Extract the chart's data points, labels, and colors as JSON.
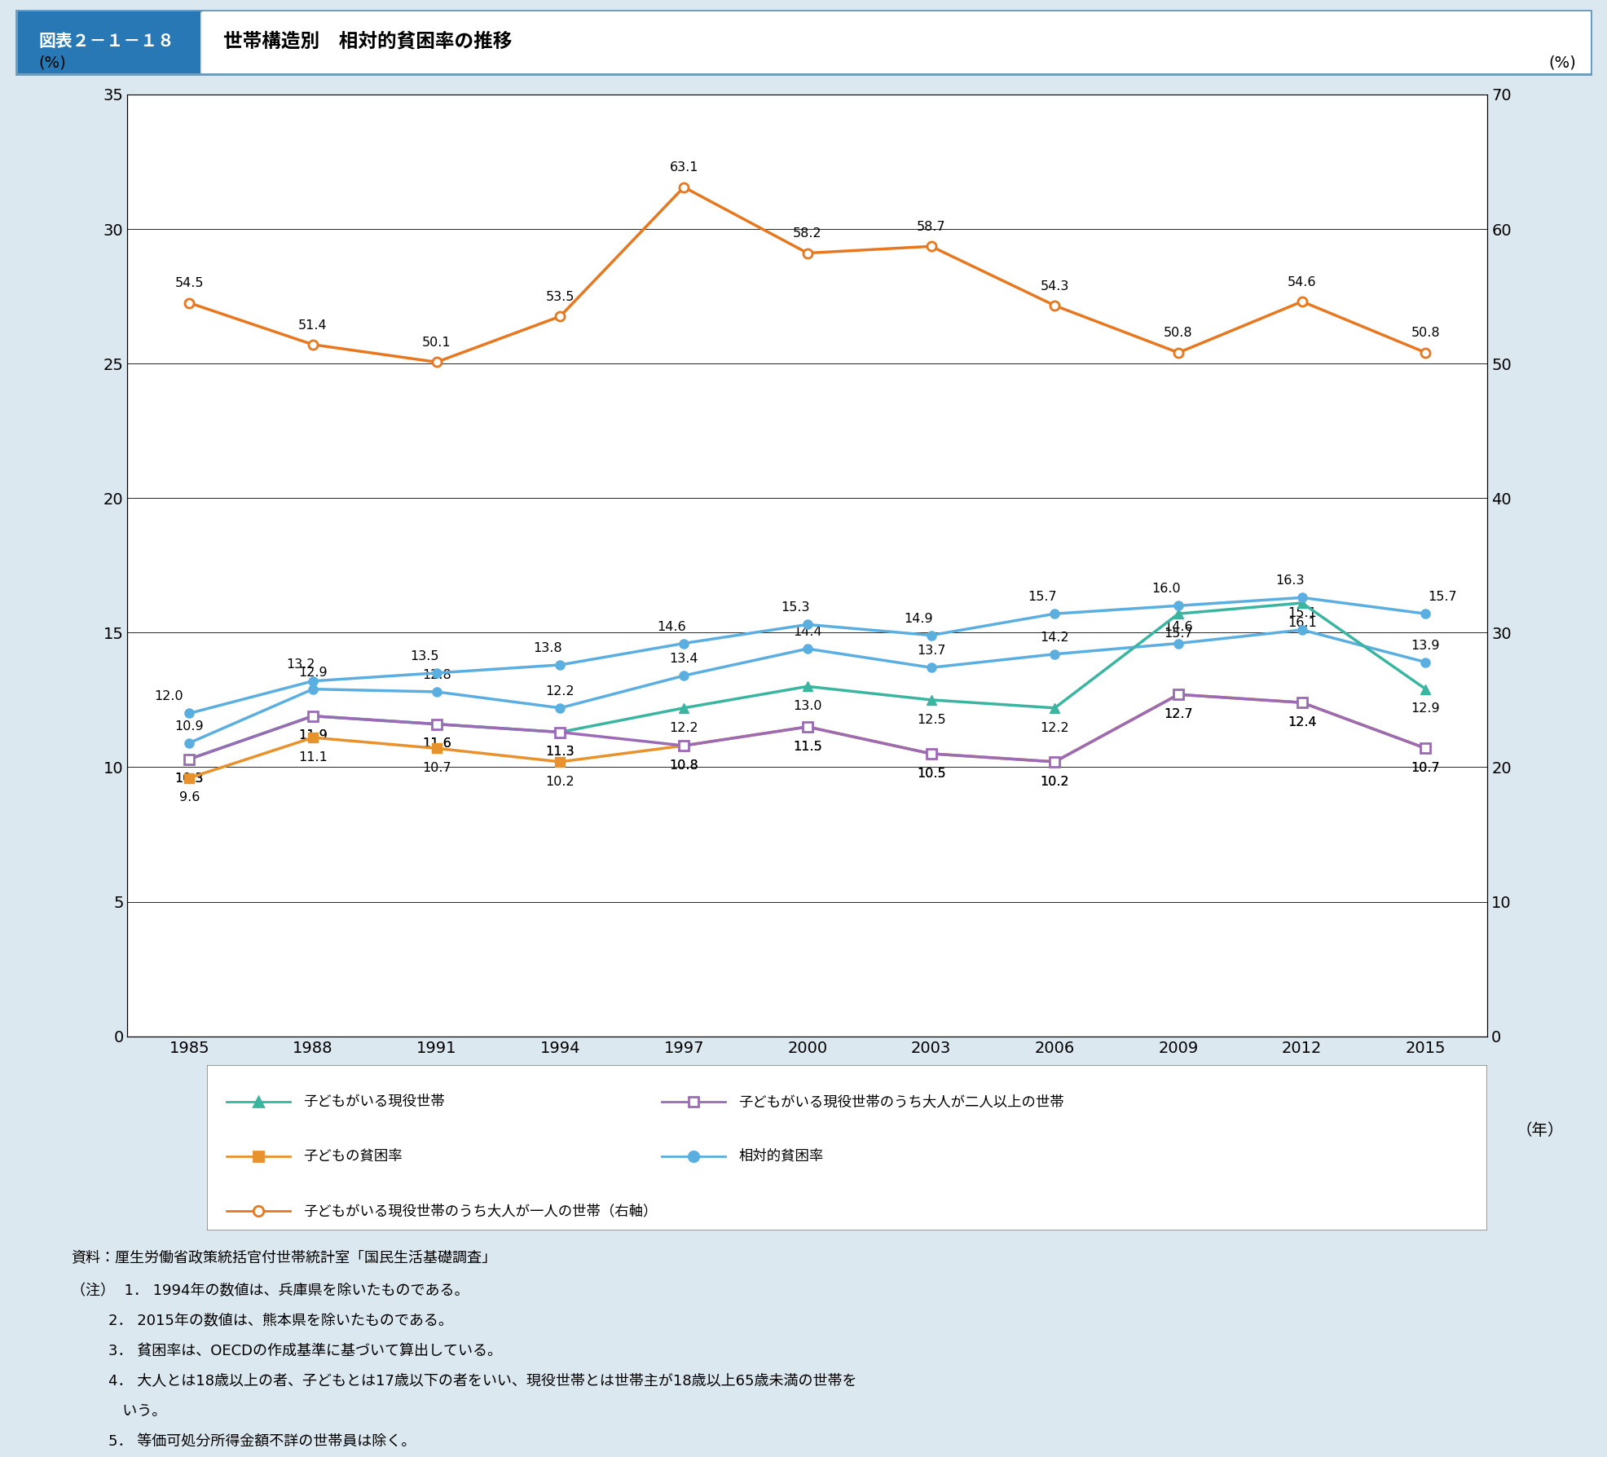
{
  "years": [
    1985,
    1988,
    1991,
    1994,
    1997,
    2000,
    2003,
    2006,
    2009,
    2012,
    2015
  ],
  "relative_poverty": [
    10.9,
    12.9,
    12.8,
    12.2,
    13.4,
    14.4,
    13.7,
    14.2,
    14.6,
    15.1,
    13.9
  ],
  "child_poverty": [
    9.6,
    11.1,
    10.7,
    10.2,
    10.8,
    11.5,
    10.5,
    10.2,
    12.7,
    12.4,
    10.7
  ],
  "child_household": [
    10.3,
    11.9,
    11.6,
    11.3,
    12.2,
    13.0,
    12.5,
    12.2,
    15.7,
    16.1,
    12.9
  ],
  "two_plus_adult": [
    10.3,
    11.9,
    11.6,
    11.3,
    10.8,
    11.5,
    10.5,
    10.2,
    12.7,
    12.4,
    10.7
  ],
  "overall_poverty": [
    12.0,
    13.2,
    13.5,
    13.8,
    14.6,
    15.3,
    14.9,
    15.7,
    16.0,
    16.3,
    15.7
  ],
  "one_adult_right": [
    54.5,
    51.4,
    50.1,
    53.5,
    63.1,
    58.2,
    58.7,
    54.3,
    50.8,
    54.6,
    50.8
  ],
  "color_relative_poverty": "#5baee0",
  "color_child_poverty": "#e8922d",
  "color_child_household": "#3ab5a0",
  "color_two_plus_adult": "#9b6bb5",
  "color_one_adult_right": "#e87820",
  "bg_color": "#dce8f0",
  "plot_bg_color": "#ffffff",
  "left_ylim": [
    0,
    35
  ],
  "right_ylim": [
    0,
    70
  ],
  "left_yticks": [
    0,
    5,
    10,
    15,
    20,
    25,
    30,
    35
  ],
  "right_yticks": [
    0,
    10,
    20,
    30,
    40,
    50,
    60,
    70
  ],
  "title_blue": "#2878b5",
  "title_bg": "#c8dae8",
  "legend_labels": [
    "子どもがいる現役世帯",
    "子どもがいる現役世帯のうち大人が二人以上の世帯",
    "子どもの貧困率",
    "相対的貧困率",
    "子どもがいる現役世帯のうち大人が一人の世帯（右軸）"
  ],
  "fig_title_num": "図表２－１－１８",
  "fig_title_text": "世帯構造別　相対的貧困率の推移",
  "source_text": "資料：厘生労働省政策統括官付世帯統計室「国民生活基礎調査」",
  "note_lines": [
    "（注）  1． 1994年の数値は、兵庫県を除いたものである。",
    "        2． 2015年の数値は、熊本県を除いたものである。",
    "        3． 貧困率は、OECDの作成基準に基づいて算出している。",
    "        4． 大人とは18歳以上の者、子どもとは17歳以下の者をいい、現役世帯とは世帯主が18歳以上65歳未満の世帯を",
    "           いう。",
    "        5． 等価可処分所得金額不詳の世帯員は除く。"
  ]
}
